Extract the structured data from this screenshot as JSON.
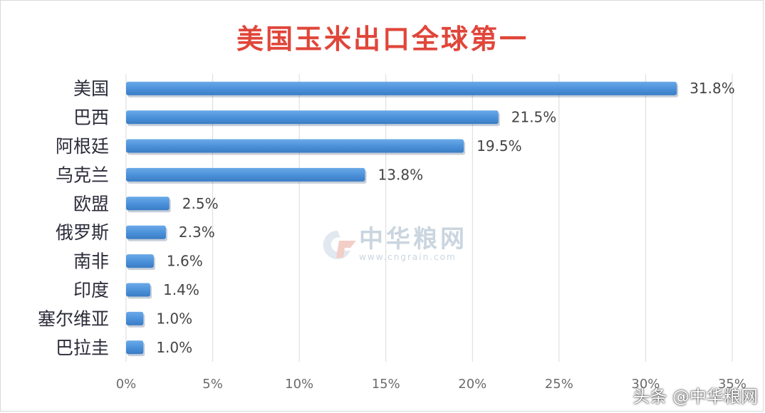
{
  "chart_data": {
    "type": "bar",
    "orientation": "horizontal",
    "title": "美国玉米出口全球第一",
    "categories": [
      "美国",
      "巴西",
      "阿根廷",
      "乌克兰",
      "欧盟",
      "俄罗斯",
      "南非",
      "印度",
      "塞尔维亚",
      "巴拉圭"
    ],
    "values": [
      31.8,
      21.5,
      19.5,
      13.8,
      2.5,
      2.3,
      1.6,
      1.4,
      1.0,
      1.0
    ],
    "value_labels": [
      "31.8%",
      "21.5%",
      "19.5%",
      "13.8%",
      "2.5%",
      "2.3%",
      "1.6%",
      "1.4%",
      "1.0%",
      "1.0%"
    ],
    "x_ticks": [
      "0%",
      "5%",
      "10%",
      "15%",
      "20%",
      "25%",
      "30%",
      "35%"
    ],
    "xlim": [
      0,
      35
    ],
    "grid": "vertical",
    "bar_color": "#4a90d9"
  },
  "watermark": {
    "name": "中华粮网",
    "url": "www.cngrain.com"
  },
  "credit": "头条 @中华粮网"
}
